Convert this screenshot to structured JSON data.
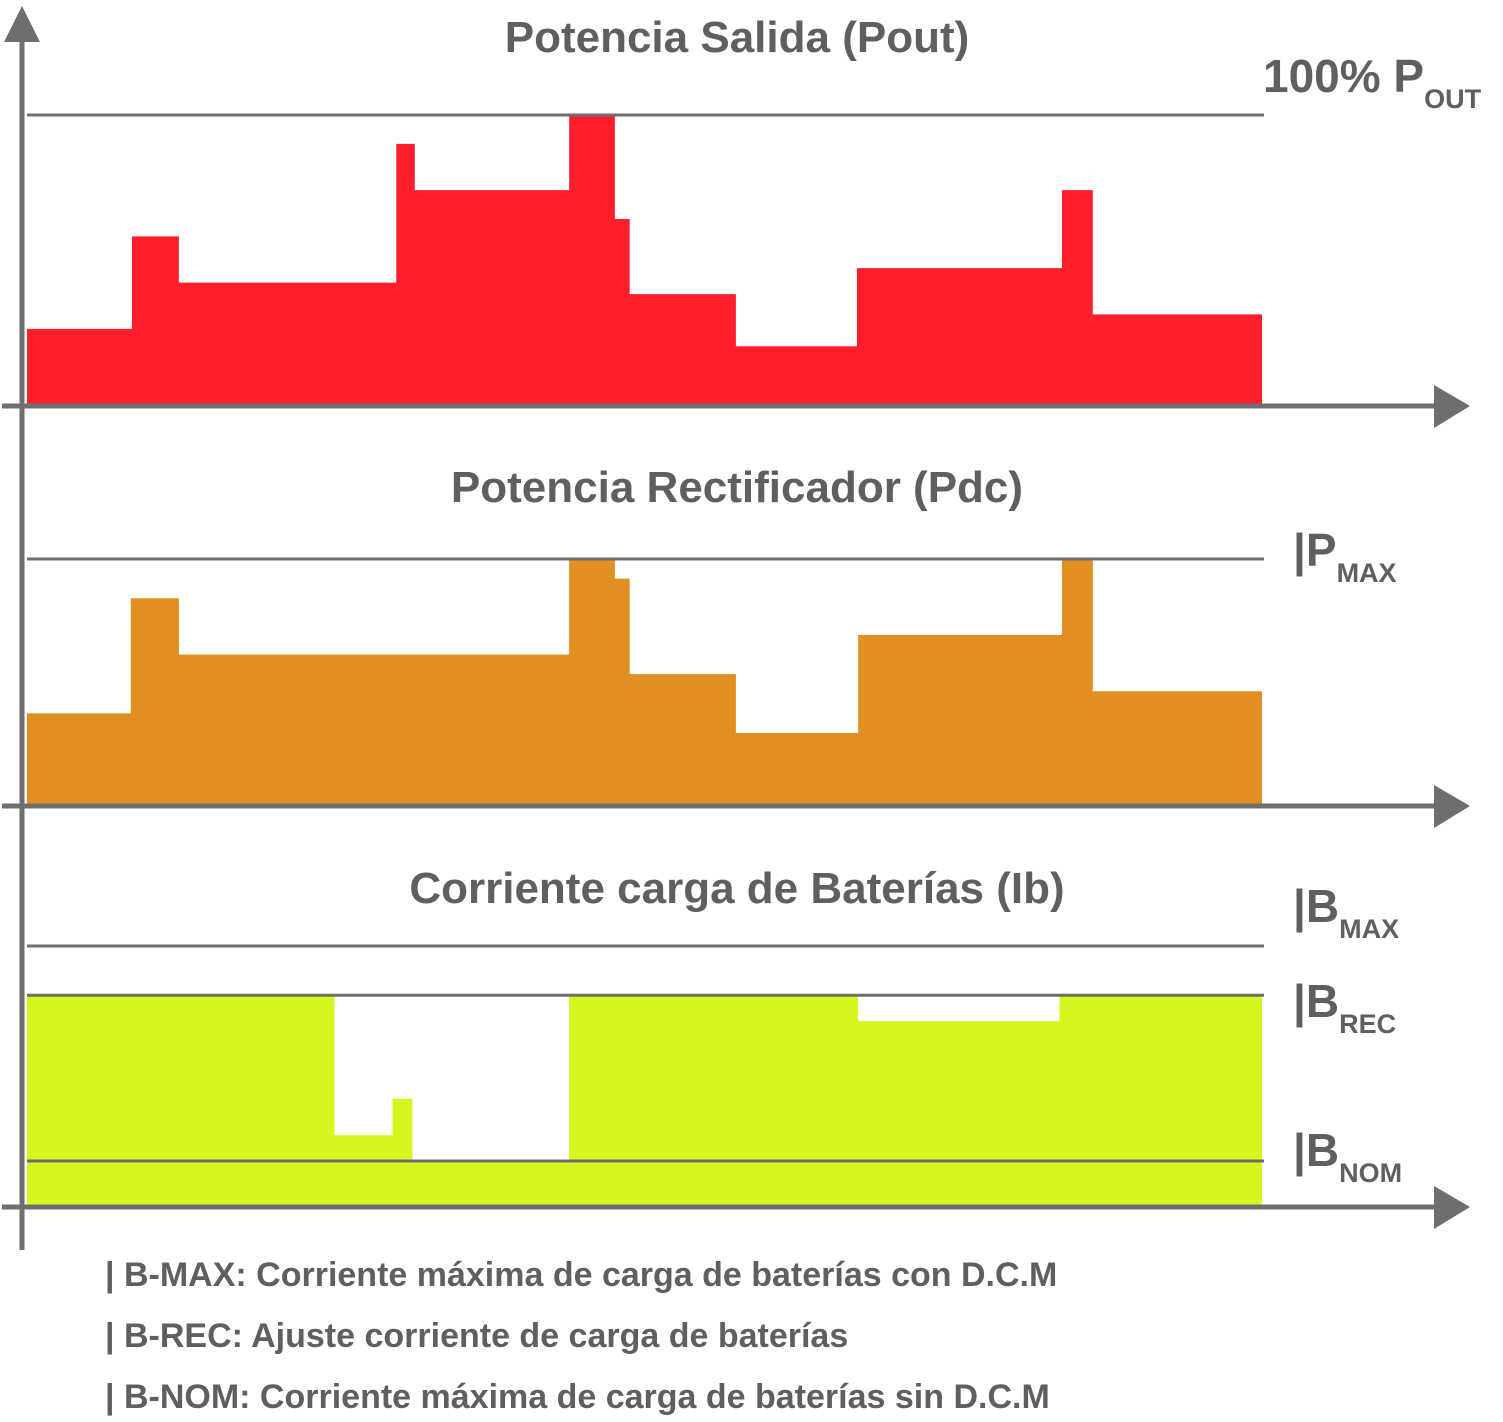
{
  "colors": {
    "pout": "#ff1f2c",
    "pdc": "#e18f20",
    "ib": "#d7f51f",
    "axis": "#6e6e6e",
    "text": "#5f5f5f"
  },
  "chart_data": [
    {
      "type": "area",
      "step": true,
      "title": "Potencia Salida (Pout)",
      "reference_lines": [
        {
          "label": "100% P",
          "sub": "OUT",
          "value": 100
        }
      ],
      "ylim": [
        0,
        100
      ],
      "series": [
        {
          "x": [
            0,
            8.5,
            12.3,
            25,
            29.9,
            31.4,
            43.9,
            47.6,
            48.8,
            57.4,
            67.2,
            83.8,
            86.3,
            100
          ],
          "y": [
            26,
            58,
            42,
            42,
            90,
            74,
            100,
            64,
            38,
            20,
            47,
            74,
            31,
            47
          ]
        }
      ]
    },
    {
      "type": "area",
      "step": true,
      "title": "Potencia Rectificador (Pdc)",
      "reference_lines": [
        {
          "label": "|P",
          "sub": "MAX",
          "value": 100
        }
      ],
      "ylim": [
        0,
        100
      ],
      "series": [
        {
          "x": [
            0,
            8.4,
            12.3,
            24.9,
            43.9,
            47.6,
            48.8,
            57.4,
            67.3,
            83.8,
            86.3,
            100
          ],
          "y": [
            37,
            84,
            61,
            61,
            100,
            92,
            53,
            29,
            69,
            100,
            46,
            69
          ]
        }
      ]
    },
    {
      "type": "area",
      "step": true,
      "title": "Corriente carga de Baterías (Ib)",
      "reference_lines": [
        {
          "label": "|B",
          "sub": "MAX",
          "value": 100
        },
        {
          "label": "|B",
          "sub": "REC",
          "value": 81
        },
        {
          "label": "|B",
          "sub": "NOM",
          "value": 17
        }
      ],
      "ylim": [
        0,
        100
      ],
      "series": [
        {
          "x": [
            0,
            24.9,
            29.6,
            31.2,
            43.9,
            67.3,
            83.6,
            100
          ],
          "y": [
            81,
            27,
            41,
            17,
            81,
            71,
            81,
            81
          ]
        }
      ]
    }
  ],
  "notes": [
    "| B-MAX: Corriente máxima de carga de baterías con D.C.M",
    "| B-REC: Ajuste corriente de carga de baterías",
    "| B-NOM: Corriente máxima de carga de baterías sin D.C.M"
  ]
}
